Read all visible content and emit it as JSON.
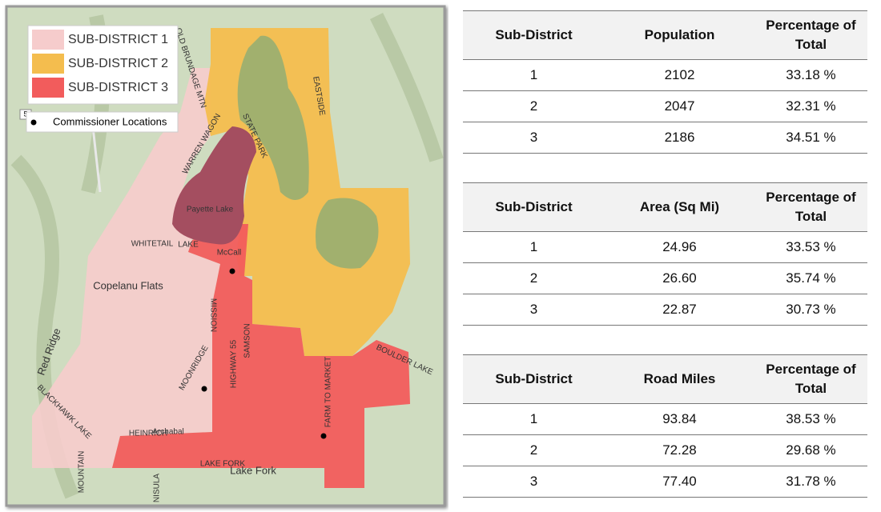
{
  "map": {
    "legend": [
      {
        "label": "SUB-DISTRICT 1",
        "color": "#f6cccc"
      },
      {
        "label": "SUB-DISTRICT 2",
        "color": "#f4bd4e"
      },
      {
        "label": "SUB-DISTRICT 3",
        "color": "#f25c5c"
      }
    ],
    "commissioner_label": "Commissioner Locations",
    "route_shield": "5",
    "labels": [
      "OLD BRUNDAGE MTN",
      "WARREN WAGON",
      "STATE PARK",
      "EASTSIDE",
      "Payette Lake",
      "WHITETAIL",
      "LAKE",
      "McCall",
      "Copelanu Flats",
      "Red Ridge",
      "MISSION",
      "HIGHWAY 55",
      "SAMSON",
      "MOONRIDGE",
      "BOULDER LAKE",
      "FARM TO MARKET",
      "BLACKHAWK LAKE",
      "Archabal",
      "HEINRICH",
      "LAKE FORK",
      "Lake Fork",
      "MOUNTAIN",
      "NISULA"
    ]
  },
  "tables": [
    {
      "columns": [
        "Sub-District",
        "Population",
        "Percentage of Total"
      ],
      "rows": [
        [
          "1",
          "2102",
          "33.18 %"
        ],
        [
          "2",
          "2047",
          "32.31 %"
        ],
        [
          "3",
          "2186",
          "34.51 %"
        ]
      ]
    },
    {
      "columns": [
        "Sub-District",
        "Area (Sq Mi)",
        "Percentage of Total"
      ],
      "rows": [
        [
          "1",
          "24.96",
          "33.53 %"
        ],
        [
          "2",
          "26.60",
          "35.74 %"
        ],
        [
          "3",
          "22.87",
          "30.73 %"
        ]
      ]
    },
    {
      "columns": [
        "Sub-District",
        "Road Miles",
        "Percentage of Total"
      ],
      "rows": [
        [
          "1",
          "93.84",
          "38.53 %"
        ],
        [
          "2",
          "72.28",
          "29.68 %"
        ],
        [
          "3",
          "77.40",
          "31.78 %"
        ]
      ]
    }
  ]
}
